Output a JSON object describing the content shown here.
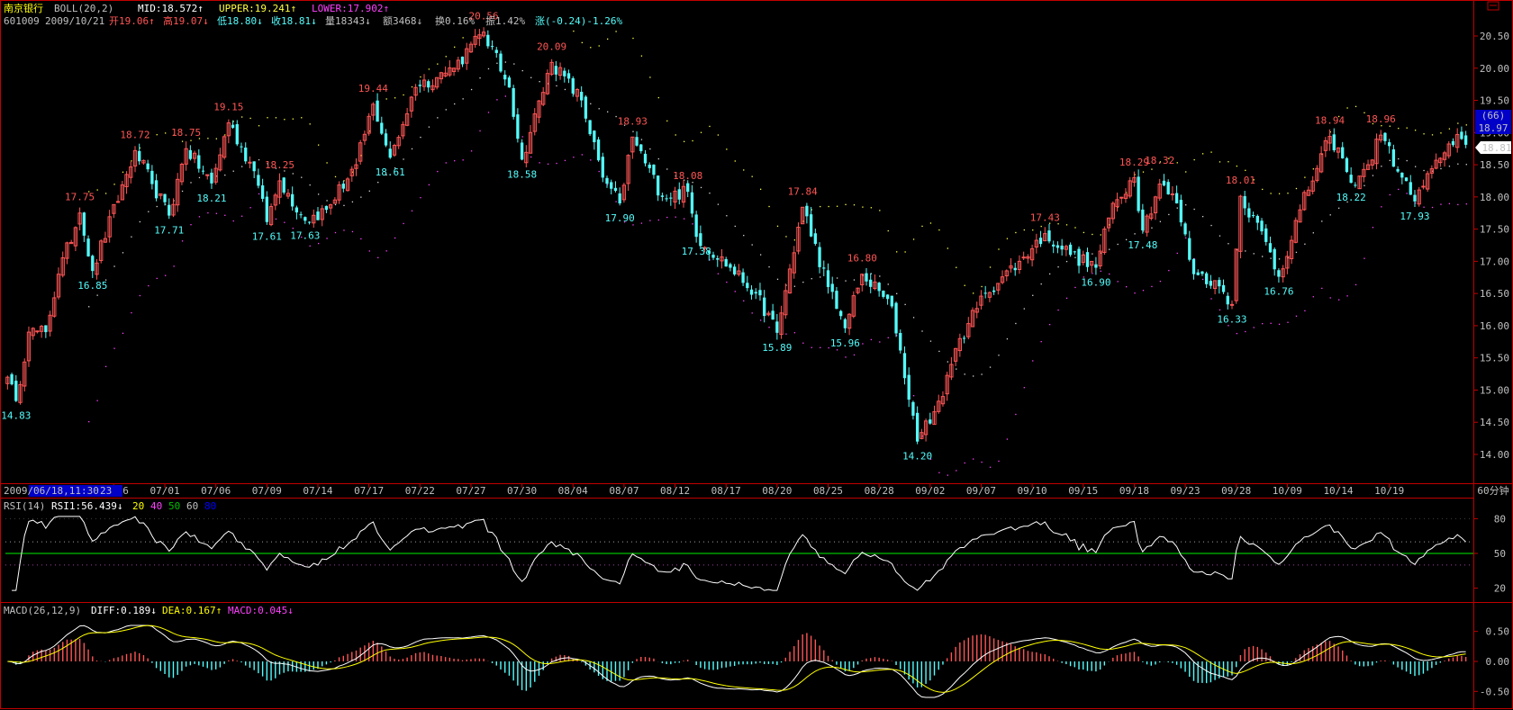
{
  "colors": {
    "up": "#ff5555",
    "down": "#54fcfc",
    "frame": "#c00000",
    "mid": "#d8d8d8",
    "upper": "#ffff40",
    "lower": "#ff40ff",
    "rsi": "#ffffff",
    "rsi_ref": "#00c000",
    "diff": "#ffffff",
    "dea": "#ffff00",
    "blue": "#0000c8"
  },
  "icons": {
    "corner": "restore-icon"
  },
  "header": {
    "name": "南京银行",
    "indicator": "BOLL(20,2)",
    "mid": "MID:18.572↑",
    "upper": "UPPER:19.241↑",
    "lower": "LOWER:17.902↑",
    "code": "601009",
    "date": "2009/10/21",
    "open": "开19.06↑",
    "high": "高19.07↓",
    "low": "低18.80↓",
    "close": "收18.81↓",
    "vol": "量18343↓",
    "amount": "额3468↓",
    "turnover": "换0.16%",
    "amplitude": "振1.42%",
    "change": "涨(-0.24)-1.26%"
  },
  "axis": {
    "cursor_start": "2009/",
    "cursor_label": "06/18,11:30",
    "first_tail": "23",
    "period": "60分钟",
    "count": "(66)",
    "price_box": "18.97",
    "price_tag": "18.81"
  },
  "rsi_header": {
    "name": "RSI(14)",
    "value": "RSI1:56.439↓",
    "l20": "20",
    "l40": "40",
    "l50": "50",
    "l60": "60",
    "l80": "80"
  },
  "macd_header": {
    "name": "MACD(26,12,9)",
    "diff": "DIFF:0.189↓",
    "dea": "DEA:0.167↑",
    "macd": "MACD:0.045↓"
  },
  "chart_data": [
    {
      "type": "candlestick",
      "name": "BOLL price panel",
      "y_ticks": [
        "20.50",
        "20.00",
        "19.50",
        "19.00",
        "18.50",
        "18.00",
        "17.50",
        "17.00",
        "16.50",
        "16.00",
        "15.50",
        "15.00",
        "14.50",
        "14.00"
      ],
      "ylim": [
        13.6,
        20.8
      ],
      "x_ticks": [
        "06/26",
        "07/01",
        "07/06",
        "07/09",
        "07/14",
        "07/17",
        "07/22",
        "07/27",
        "07/30",
        "08/04",
        "08/07",
        "08/12",
        "08/17",
        "08/20",
        "08/25",
        "08/28",
        "09/02",
        "09/07",
        "09/10",
        "09/15",
        "09/18",
        "09/23",
        "09/28",
        "10/09",
        "10/14",
        "10/19"
      ],
      "x_tick_index": [
        25,
        37,
        49,
        61,
        73,
        85,
        97,
        109,
        121,
        133,
        145,
        157,
        169,
        181,
        193,
        205,
        217,
        229,
        241,
        253,
        265,
        277,
        289,
        301,
        313,
        325
      ],
      "anchors": [
        [
          0,
          15.2
        ],
        [
          2,
          14.83
        ],
        [
          5,
          15.9
        ],
        [
          9,
          15.9
        ],
        [
          12,
          16.8
        ],
        [
          17,
          17.75
        ],
        [
          20,
          16.85
        ],
        [
          30,
          18.72
        ],
        [
          34,
          18.2
        ],
        [
          38,
          17.71
        ],
        [
          42,
          18.75
        ],
        [
          48,
          18.21
        ],
        [
          52,
          19.15
        ],
        [
          58,
          18.4
        ],
        [
          61,
          17.61
        ],
        [
          64,
          18.25
        ],
        [
          70,
          17.63
        ],
        [
          75,
          17.8
        ],
        [
          82,
          18.5
        ],
        [
          86,
          19.44
        ],
        [
          90,
          18.61
        ],
        [
          96,
          19.7
        ],
        [
          105,
          20.0
        ],
        [
          112,
          20.56
        ],
        [
          118,
          19.7
        ],
        [
          121,
          18.58
        ],
        [
          128,
          20.09
        ],
        [
          135,
          19.5
        ],
        [
          140,
          18.3
        ],
        [
          144,
          17.9
        ],
        [
          147,
          18.93
        ],
        [
          154,
          18.0
        ],
        [
          160,
          18.08
        ],
        [
          162,
          17.38
        ],
        [
          170,
          16.9
        ],
        [
          176,
          16.5
        ],
        [
          181,
          15.89
        ],
        [
          187,
          17.84
        ],
        [
          193,
          16.6
        ],
        [
          197,
          15.96
        ],
        [
          201,
          16.8
        ],
        [
          208,
          16.3
        ],
        [
          214,
          14.2
        ],
        [
          220,
          14.9
        ],
        [
          224,
          15.8
        ],
        [
          230,
          16.5
        ],
        [
          238,
          17.0
        ],
        [
          244,
          17.43
        ],
        [
          250,
          17.1
        ],
        [
          256,
          16.9
        ],
        [
          260,
          17.9
        ],
        [
          265,
          18.3
        ],
        [
          267,
          17.48
        ],
        [
          271,
          18.2
        ],
        [
          275,
          17.9
        ],
        [
          279,
          16.8
        ],
        [
          284,
          16.7
        ],
        [
          288,
          16.33
        ],
        [
          290,
          18.01
        ],
        [
          296,
          17.3
        ],
        [
          299,
          16.76
        ],
        [
          304,
          17.8
        ],
        [
          311,
          18.94
        ],
        [
          314,
          18.6
        ],
        [
          316,
          18.22
        ],
        [
          320,
          18.5
        ],
        [
          323,
          18.96
        ],
        [
          328,
          18.3
        ],
        [
          331,
          17.93
        ],
        [
          337,
          18.6
        ],
        [
          341,
          18.97
        ],
        [
          343,
          18.81
        ]
      ],
      "n_bars": 344,
      "peak_labels": [
        {
          "i": 2,
          "v": "14.83",
          "kind": "low"
        },
        {
          "i": 20,
          "v": "16.85",
          "kind": "low"
        },
        {
          "i": 17,
          "v": "17.75",
          "kind": "high"
        },
        {
          "i": 30,
          "v": "18.72",
          "kind": "high"
        },
        {
          "i": 38,
          "v": "17.71",
          "kind": "low"
        },
        {
          "i": 42,
          "v": "18.75",
          "kind": "high"
        },
        {
          "i": 48,
          "v": "18.21",
          "kind": "low"
        },
        {
          "i": 52,
          "v": "19.15",
          "kind": "high"
        },
        {
          "i": 61,
          "v": "17.61",
          "kind": "low"
        },
        {
          "i": 64,
          "v": "18.25",
          "kind": "high"
        },
        {
          "i": 70,
          "v": "17.63",
          "kind": "low"
        },
        {
          "i": 86,
          "v": "19.44",
          "kind": "high"
        },
        {
          "i": 90,
          "v": "18.61",
          "kind": "low"
        },
        {
          "i": 112,
          "v": "20.56",
          "kind": "high"
        },
        {
          "i": 121,
          "v": "18.58",
          "kind": "low"
        },
        {
          "i": 128,
          "v": "20.09",
          "kind": "high"
        },
        {
          "i": 144,
          "v": "17.90",
          "kind": "low"
        },
        {
          "i": 147,
          "v": "18.93",
          "kind": "high"
        },
        {
          "i": 160,
          "v": "18.08",
          "kind": "high"
        },
        {
          "i": 162,
          "v": "17.38",
          "kind": "low"
        },
        {
          "i": 181,
          "v": "15.89",
          "kind": "low"
        },
        {
          "i": 187,
          "v": "17.84",
          "kind": "high"
        },
        {
          "i": 197,
          "v": "15.96",
          "kind": "low"
        },
        {
          "i": 201,
          "v": "16.80",
          "kind": "high"
        },
        {
          "i": 214,
          "v": "14.20",
          "kind": "low"
        },
        {
          "i": 244,
          "v": "17.43",
          "kind": "high"
        },
        {
          "i": 256,
          "v": "16.90",
          "kind": "low"
        },
        {
          "i": 265,
          "v": "18.29",
          "kind": "high"
        },
        {
          "i": 267,
          "v": "17.48",
          "kind": "low"
        },
        {
          "i": 271,
          "v": "18.32",
          "kind": "high"
        },
        {
          "i": 288,
          "v": "16.33",
          "kind": "low"
        },
        {
          "i": 290,
          "v": "18.01",
          "kind": "high"
        },
        {
          "i": 299,
          "v": "16.76",
          "kind": "low"
        },
        {
          "i": 311,
          "v": "18.94",
          "kind": "high"
        },
        {
          "i": 316,
          "v": "18.22",
          "kind": "low"
        },
        {
          "i": 323,
          "v": "18.96",
          "kind": "high"
        },
        {
          "i": 331,
          "v": "17.93",
          "kind": "low"
        }
      ]
    },
    {
      "type": "line",
      "name": "RSI panel",
      "y_ticks": [
        "80",
        "50",
        "20"
      ],
      "ylim": [
        15,
        85
      ],
      "levels": [
        80,
        60,
        50,
        40
      ]
    },
    {
      "type": "bar+line",
      "name": "MACD panel",
      "y_ticks": [
        "0.50",
        "0.00",
        "-0.50"
      ],
      "ylim": [
        -0.68,
        0.78
      ]
    }
  ]
}
